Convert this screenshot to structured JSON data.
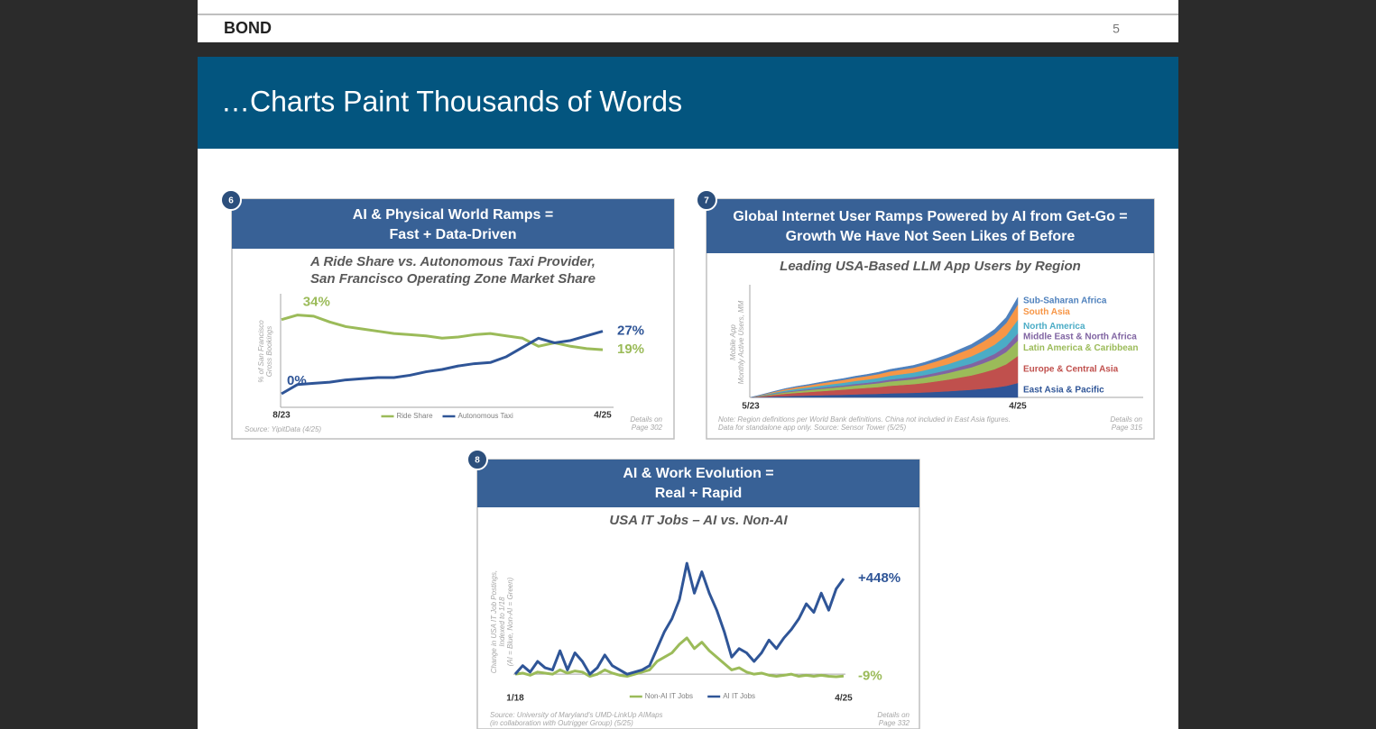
{
  "header": {
    "brand": "BOND",
    "page_number": "5"
  },
  "title": "…Charts Paint Thousands of Words",
  "chart_data": [
    {
      "type": "line",
      "number": "6",
      "title": [
        "AI & Physical World Ramps =",
        "Fast + Data-Driven"
      ],
      "subtitle": [
        "A Ride Share vs. Autonomous Taxi Provider,",
        "San Francisco Operating Zone Market Share"
      ],
      "y_label": [
        "% of San Francisco",
        "Gross Bookings"
      ],
      "categories": [
        "8/23",
        null,
        null,
        null,
        null,
        null,
        null,
        null,
        null,
        null,
        null,
        null,
        null,
        null,
        null,
        null,
        null,
        null,
        null,
        null,
        "4/25"
      ],
      "ylim": [
        0,
        35
      ],
      "series": [
        {
          "name": "Ride Share",
          "color": "#9bbb59",
          "values": [
            32,
            34,
            33.5,
            31,
            29,
            28,
            27,
            26,
            25.5,
            25,
            24,
            24.5,
            25.5,
            26,
            25,
            24,
            20.5,
            22,
            20.5,
            19.5,
            19
          ],
          "value_labels": [
            null,
            "34%",
            null,
            null,
            null,
            null,
            null,
            null,
            null,
            null,
            null,
            null,
            null,
            null,
            null,
            null,
            null,
            null,
            null,
            null,
            "19%"
          ]
        },
        {
          "name": "Autonomous Taxi",
          "color": "#2f5597",
          "values": [
            0,
            4,
            4.5,
            5,
            6,
            6.5,
            7,
            7,
            8,
            9.5,
            10.5,
            12,
            13,
            13.5,
            16,
            20,
            24,
            22,
            23,
            25,
            27
          ],
          "value_labels": [
            "0%",
            null,
            null,
            null,
            null,
            null,
            null,
            null,
            null,
            null,
            null,
            null,
            null,
            null,
            null,
            null,
            null,
            null,
            null,
            null,
            "27%"
          ]
        }
      ],
      "source": [
        "Source: YipitData (4/25)"
      ],
      "details": [
        "Details on",
        "Page 302"
      ]
    },
    {
      "type": "area",
      "stacked": true,
      "number": "7",
      "title": [
        "Global Internet User Ramps Powered by AI from Get-Go =",
        "Growth We Have Not Seen Likes of Before"
      ],
      "subtitle": [
        "Leading USA-Based LLM App Users by Region"
      ],
      "y_label": [
        "Mobile App",
        "Monthly Active Users, MM"
      ],
      "categories": [
        "5/23",
        null,
        null,
        null,
        null,
        null,
        null,
        null,
        null,
        null,
        null,
        null,
        null,
        null,
        null,
        null,
        null,
        null,
        null,
        null,
        null,
        null,
        null,
        "4/25"
      ],
      "ylim": [
        0,
        120
      ],
      "series": [
        {
          "name": "East Asia & Pacific",
          "color": "#2f5597",
          "values": [
            0,
            0.5,
            1,
            1.4,
            1.8,
            2.1,
            2.4,
            2.7,
            3,
            3.4,
            3.7,
            4,
            4.5,
            4.8,
            5.1,
            5.6,
            6.2,
            6.9,
            7.7,
            8.5,
            9.6,
            10.9,
            12.8,
            16
          ]
        },
        {
          "name": "Europe & Central Asia",
          "color": "#c0504d",
          "values": [
            0,
            0.9,
            1.8,
            2.7,
            3.3,
            3.9,
            4.5,
            5.1,
            5.7,
            6.3,
            6.9,
            7.5,
            8.4,
            9,
            9.6,
            10.5,
            11.7,
            12.9,
            14.4,
            15.9,
            18,
            20.4,
            24,
            30
          ]
        },
        {
          "name": "Latin America & Caribbean",
          "color": "#9bbb59",
          "values": [
            0,
            0.5,
            1,
            1.5,
            1.9,
            2.2,
            2.6,
            2.9,
            3.2,
            3.6,
            3.9,
            4.3,
            4.8,
            5.1,
            5.4,
            6,
            6.6,
            7.3,
            8.2,
            9,
            10.2,
            11.6,
            13.6,
            17
          ]
        },
        {
          "name": "Middle East & North Africa",
          "color": "#8064a2",
          "values": [
            0,
            0.2,
            0.5,
            0.7,
            0.9,
            1,
            1.2,
            1.4,
            1.5,
            1.7,
            1.8,
            2,
            2.2,
            2.4,
            2.6,
            2.8,
            3.1,
            3.4,
            3.8,
            4.2,
            4.8,
            5.4,
            6.4,
            8
          ]
        },
        {
          "name": "North America",
          "color": "#4bacc6",
          "values": [
            0,
            0.5,
            0.9,
            1.4,
            1.7,
            2,
            2.3,
            2.6,
            2.9,
            3.2,
            3.5,
            3.8,
            4.2,
            4.5,
            4.8,
            5.3,
            5.9,
            6.5,
            7.2,
            8,
            9,
            10.2,
            12,
            15
          ]
        },
        {
          "name": "South Asia",
          "color": "#f79646",
          "values": [
            0,
            0.5,
            1,
            1.5,
            1.9,
            2.2,
            2.6,
            2.9,
            3.2,
            3.6,
            3.9,
            4.3,
            4.8,
            5.1,
            5.4,
            6,
            6.6,
            7.3,
            8.2,
            9,
            10.2,
            11.6,
            13.6,
            17
          ]
        },
        {
          "name": "Sub-Saharan Africa",
          "color": "#4f81bd",
          "values": [
            0,
            0.2,
            0.5,
            0.7,
            0.9,
            1,
            1.2,
            1.4,
            1.5,
            1.7,
            1.8,
            2,
            2.2,
            2.4,
            2.6,
            2.8,
            3.1,
            3.4,
            3.8,
            4.2,
            4.8,
            5.4,
            6.4,
            8
          ]
        }
      ],
      "source": [
        "Note: Region definitions per World Bank definitions. China not included in East Asia figures.",
        "Data for standalone app only. Source: Sensor Tower (5/25)"
      ],
      "details": [
        "Details on",
        "Page 315"
      ]
    },
    {
      "type": "line",
      "number": "8",
      "title": [
        "AI & Work Evolution =",
        "Real + Rapid"
      ],
      "subtitle": [
        "USA IT Jobs – AI vs. Non-AI"
      ],
      "y_label": [
        "Change in USA IT Job Postings,",
        "Indexed to 1/18",
        "(AI = Blue, Non-AI = Green)"
      ],
      "categories": [
        "1/18",
        null,
        null,
        null,
        null,
        null,
        null,
        null,
        null,
        null,
        null,
        null,
        null,
        null,
        null,
        null,
        null,
        null,
        null,
        null,
        null,
        null,
        null,
        null,
        null,
        null,
        null,
        null,
        null,
        null,
        null,
        null,
        null,
        null,
        null,
        null,
        null,
        null,
        null,
        null,
        null,
        null,
        null,
        null,
        "4/25"
      ],
      "ylim": [
        -50,
        550
      ],
      "series": [
        {
          "name": "Non-AI IT Jobs",
          "color": "#9bbb59",
          "values": [
            0,
            5,
            -5,
            10,
            5,
            0,
            20,
            5,
            15,
            10,
            -10,
            0,
            20,
            5,
            -5,
            -10,
            0,
            10,
            20,
            60,
            80,
            100,
            140,
            170,
            120,
            150,
            110,
            80,
            50,
            20,
            30,
            10,
            0,
            5,
            -5,
            -10,
            -5,
            0,
            -10,
            -5,
            -10,
            -5,
            -10,
            -12,
            -9
          ],
          "value_labels": [
            null,
            null,
            null,
            null,
            null,
            null,
            null,
            null,
            null,
            null,
            null,
            null,
            null,
            null,
            null,
            null,
            null,
            null,
            null,
            null,
            null,
            null,
            null,
            null,
            null,
            null,
            null,
            null,
            null,
            null,
            null,
            null,
            null,
            null,
            null,
            null,
            null,
            null,
            null,
            null,
            null,
            null,
            null,
            null,
            "-9%"
          ]
        },
        {
          "name": "AI IT Jobs",
          "color": "#2f5597",
          "values": [
            0,
            40,
            10,
            60,
            30,
            20,
            110,
            20,
            100,
            60,
            0,
            30,
            90,
            40,
            20,
            0,
            10,
            20,
            40,
            120,
            200,
            260,
            350,
            520,
            380,
            480,
            380,
            300,
            200,
            80,
            120,
            100,
            60,
            100,
            160,
            120,
            170,
            210,
            260,
            330,
            290,
            380,
            300,
            400,
            448
          ],
          "value_labels": [
            null,
            null,
            null,
            null,
            null,
            null,
            null,
            null,
            null,
            null,
            null,
            null,
            null,
            null,
            null,
            null,
            null,
            null,
            null,
            null,
            null,
            null,
            null,
            null,
            null,
            null,
            null,
            null,
            null,
            null,
            null,
            null,
            null,
            null,
            null,
            null,
            null,
            null,
            null,
            null,
            null,
            null,
            null,
            null,
            "+448%"
          ]
        }
      ],
      "source": [
        "Source: University of Maryland's UMD-LinkUp AIMaps",
        "(in collaboration with Outrigger Group) (5/25)"
      ],
      "details": [
        "Details on",
        "Page 332"
      ]
    }
  ]
}
